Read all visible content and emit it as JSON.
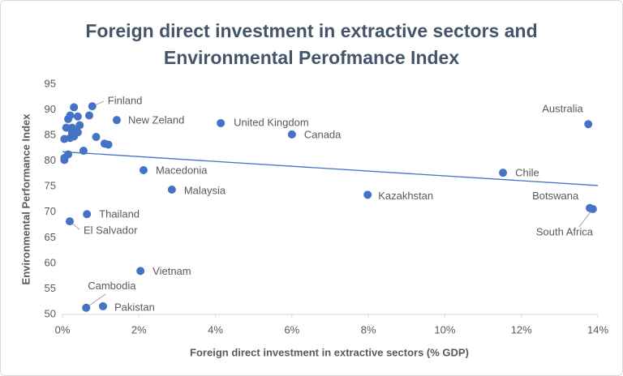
{
  "chart_data": {
    "type": "scatter",
    "title": [
      "Foreign direct investment in extractive sectors and",
      "Environmental Perofmance Index"
    ],
    "x_label": "Foreign direct investment in extractive sectors (% GDP)",
    "y_label": "Environmental Performance Index",
    "xlim": [
      0,
      14
    ],
    "ylim": [
      50,
      95
    ],
    "xticks": [
      {
        "value": 0,
        "label": "0%"
      },
      {
        "value": 2,
        "label": "2%"
      },
      {
        "value": 4,
        "label": "4%"
      },
      {
        "value": 6,
        "label": "6%"
      },
      {
        "value": 8,
        "label": "8%"
      },
      {
        "value": 10,
        "label": "10%"
      },
      {
        "value": 12,
        "label": "12%"
      },
      {
        "value": 14,
        "label": "14%"
      }
    ],
    "yticks": [
      50,
      55,
      60,
      65,
      70,
      75,
      80,
      85,
      90,
      95
    ],
    "grid": false,
    "series": [
      {
        "color": "#4472c4",
        "x": [
          0.78,
          1.42,
          4.14,
          6.0,
          2.12,
          2.86,
          7.98,
          11.52,
          13.75,
          13.79,
          13.87,
          0.64,
          0.19,
          2.04,
          0.62,
          1.06,
          0.05,
          0.05,
          0.05,
          0.1,
          0.15,
          0.2,
          0.25,
          0.3,
          0.25,
          0.35,
          0.4,
          0.45,
          0.4,
          0.3,
          0.15,
          0.55,
          0.7,
          0.88,
          1.1,
          1.2,
          0.2
        ],
        "values": [
          90.7,
          88.0,
          87.4,
          85.2,
          78.2,
          74.4,
          73.4,
          77.7,
          87.2,
          70.8,
          70.6,
          69.6,
          68.2,
          58.5,
          51.3,
          51.6,
          84.3,
          80.6,
          80.2,
          86.5,
          88.2,
          88.9,
          86.5,
          84.8,
          85.6,
          85.8,
          85.6,
          87.0,
          88.7,
          90.5,
          81.3,
          82.0,
          88.9,
          84.7,
          83.4,
          83.2,
          84.5
        ],
        "labels": [
          "Finland",
          "New Zeland",
          "United Kingdom",
          "Canada",
          "Macedonia",
          "Malaysia",
          "Kazakhstan",
          "Chile",
          "Australia",
          "Botswana",
          "South Africa",
          "Thailand",
          "El Salvador",
          "Vietnam",
          "Cambodia",
          "Pakistan",
          null,
          null,
          null,
          null,
          null,
          null,
          null,
          null,
          null,
          null,
          null,
          null,
          null,
          null,
          null,
          null,
          null,
          null,
          null,
          null,
          null
        ]
      }
    ],
    "trendline": {
      "color": "#4472c4",
      "x": [
        0,
        14
      ],
      "values": [
        81.8,
        75.2
      ]
    }
  }
}
